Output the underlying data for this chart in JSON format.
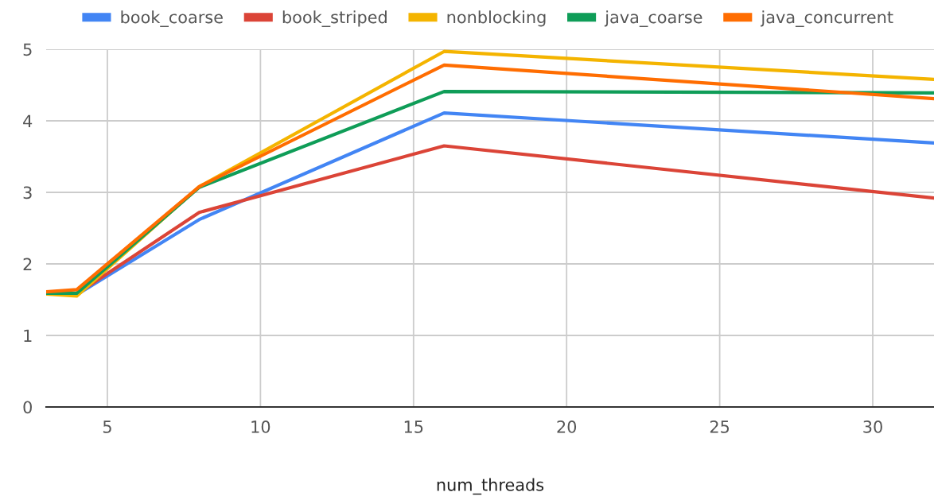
{
  "chart_data": {
    "type": "line",
    "xlabel": "num_threads",
    "x": [
      3,
      4,
      8,
      16,
      32
    ],
    "series": [
      {
        "name": "book_coarse",
        "color": "#4285f4",
        "values": [
          1.6,
          1.57,
          2.62,
          4.11,
          3.69
        ]
      },
      {
        "name": "book_striped",
        "color": "#db4437",
        "values": [
          1.6,
          1.58,
          2.72,
          3.65,
          2.92
        ]
      },
      {
        "name": "nonblocking",
        "color": "#f4b400",
        "values": [
          1.58,
          1.55,
          3.08,
          4.97,
          4.58
        ]
      },
      {
        "name": "java_coarse",
        "color": "#0f9d58",
        "values": [
          1.59,
          1.59,
          3.07,
          4.41,
          4.39
        ]
      },
      {
        "name": "java_concurrent",
        "color": "#ff6d01",
        "values": [
          1.61,
          1.64,
          3.08,
          4.78,
          4.31
        ]
      }
    ],
    "xlim": [
      3,
      32
    ],
    "xticks": [
      5,
      10,
      15,
      20,
      25,
      30
    ],
    "ylim": [
      0,
      5
    ],
    "yticks": [
      0,
      1,
      2,
      3,
      4,
      5
    ],
    "grid": true,
    "legend": "top",
    "marker": "none",
    "line_style": "solid"
  }
}
